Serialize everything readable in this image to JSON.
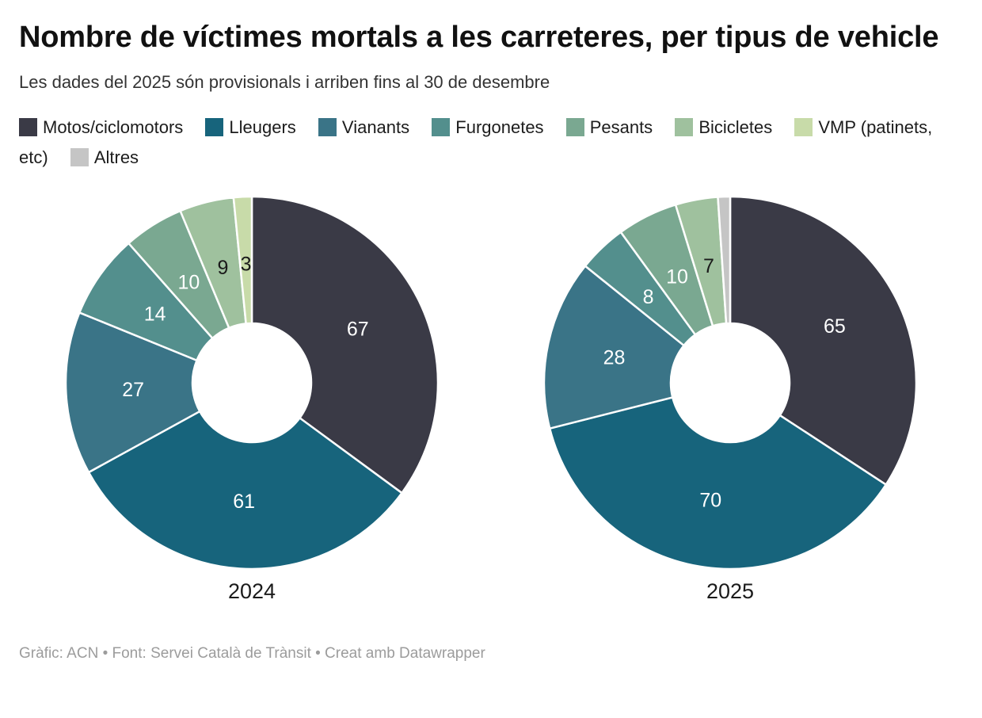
{
  "header": {
    "title": "Nombre de víctimes mortals a les carreteres, per tipus de vehicle",
    "subtitle": "Les dades del 2025 són provisionals i arriben fins al 30 de desembre"
  },
  "chart_data": {
    "type": "pie",
    "variant": "donut",
    "legend_position": "top",
    "categories": [
      "Motos/ciclomotors",
      "Lleugers",
      "Vianants",
      "Furgonetes",
      "Pesants",
      "Bicicletes",
      "VMP (patinets, etc)",
      "Altres"
    ],
    "palette": {
      "Motos/ciclomotors": "#3a3a46",
      "Lleugers": "#17647c",
      "Vianants": "#3a7487",
      "Furgonetes": "#538f8d",
      "Pesants": "#7aa891",
      "Bicicletes": "#9fc19e",
      "VMP (patinets, etc)": "#c8dba9",
      "Altres": "#c5c5c5"
    },
    "charts": [
      {
        "year_label": "2024",
        "slices": [
          {
            "category": "Motos/ciclomotors",
            "value": 67,
            "data_label": "67",
            "label_color": "#ffffff"
          },
          {
            "category": "Lleugers",
            "value": 61,
            "data_label": "61",
            "label_color": "#ffffff"
          },
          {
            "category": "Vianants",
            "value": 27,
            "data_label": "27",
            "label_color": "#ffffff"
          },
          {
            "category": "Furgonetes",
            "value": 14,
            "data_label": "14",
            "label_color": "#ffffff"
          },
          {
            "category": "Pesants",
            "value": 10,
            "data_label": "10",
            "label_color": "#ffffff"
          },
          {
            "category": "Bicicletes",
            "value": 9,
            "data_label": "9",
            "label_color": "#1a1a1a"
          },
          {
            "category": "VMP (patinets, etc)",
            "value": 3,
            "data_label": "3",
            "label_color": "#1a1a1a"
          }
        ]
      },
      {
        "year_label": "2025",
        "slices": [
          {
            "category": "Motos/ciclomotors",
            "value": 65,
            "data_label": "65",
            "label_color": "#ffffff"
          },
          {
            "category": "Lleugers",
            "value": 70,
            "data_label": "70",
            "label_color": "#ffffff"
          },
          {
            "category": "Vianants",
            "value": 28,
            "data_label": "28",
            "label_color": "#ffffff"
          },
          {
            "category": "Furgonetes",
            "value": 8,
            "data_label": "8",
            "label_color": "#ffffff"
          },
          {
            "category": "Pesants",
            "value": 10,
            "data_label": "10",
            "label_color": "#ffffff"
          },
          {
            "category": "Bicicletes",
            "value": 7,
            "data_label": "7",
            "label_color": "#1a1a1a"
          },
          {
            "category": "Altres",
            "value": 2,
            "data_label": null,
            "label_color": null,
            "estimated": true
          }
        ]
      }
    ]
  },
  "footer": {
    "credit": "Gràfic: ACN • Font: Servei Català de Trànsit • Creat amb Datawrapper"
  }
}
